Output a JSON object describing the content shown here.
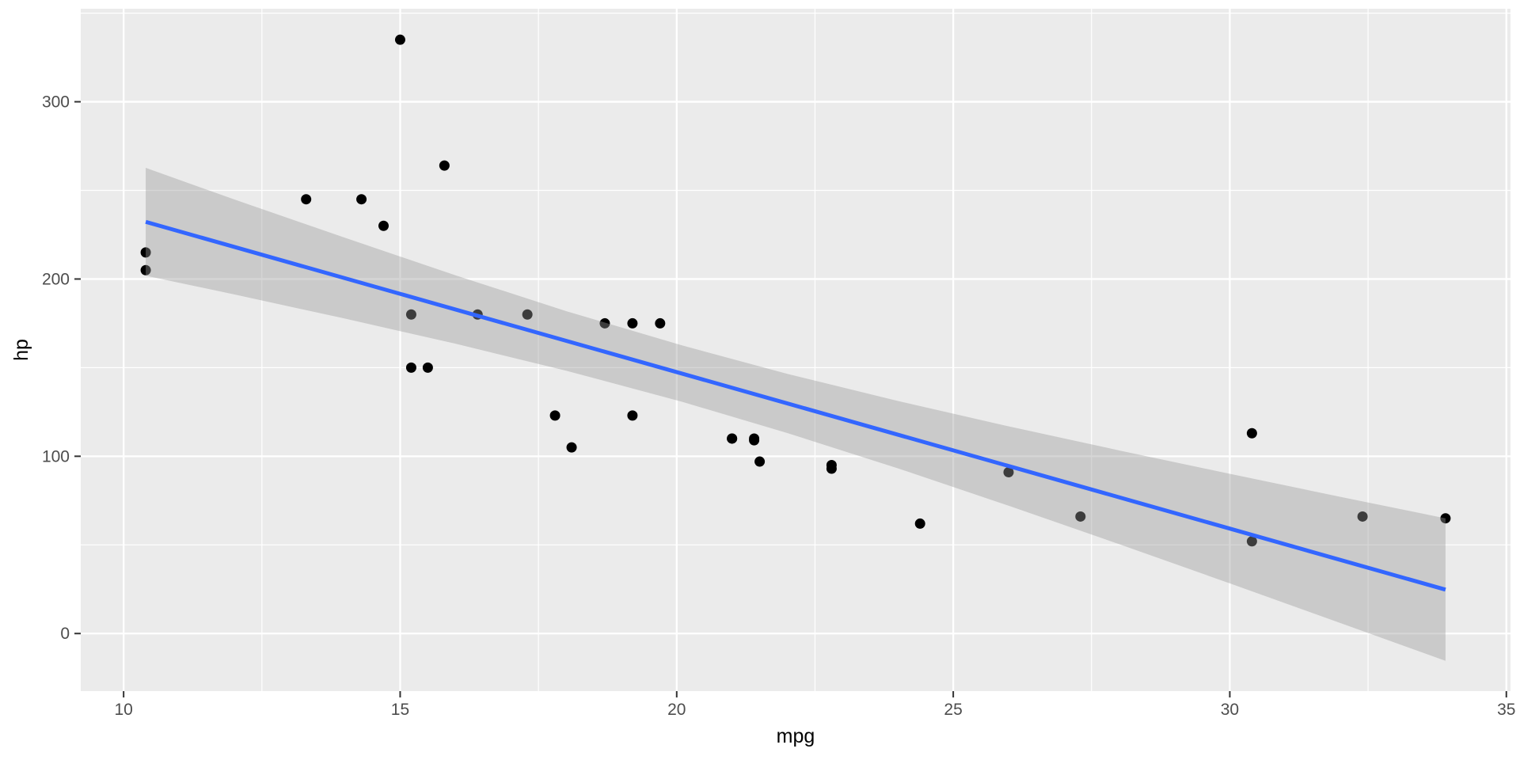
{
  "chart_data": {
    "type": "scatter",
    "title": "",
    "xlabel": "mpg",
    "ylabel": "hp",
    "legend": "none",
    "grid": "on",
    "xlim": [
      9.225,
      35.075
    ],
    "ylim": [
      -32.5,
      352.5
    ],
    "x_ticks": [
      10,
      15,
      20,
      25,
      30,
      35
    ],
    "y_ticks": [
      0,
      100,
      200,
      300
    ],
    "x_minor_ticks": [
      12.5,
      17.5,
      22.5,
      27.5,
      32.5
    ],
    "y_minor_ticks": [
      50,
      150,
      250,
      350
    ],
    "points": [
      [
        21.0,
        110
      ],
      [
        21.0,
        110
      ],
      [
        22.8,
        93
      ],
      [
        21.4,
        110
      ],
      [
        18.7,
        175
      ],
      [
        18.1,
        105
      ],
      [
        14.3,
        245
      ],
      [
        24.4,
        62
      ],
      [
        22.8,
        95
      ],
      [
        19.2,
        123
      ],
      [
        17.8,
        123
      ],
      [
        16.4,
        180
      ],
      [
        17.3,
        180
      ],
      [
        15.2,
        180
      ],
      [
        10.4,
        205
      ],
      [
        10.4,
        215
      ],
      [
        14.7,
        230
      ],
      [
        32.4,
        66
      ],
      [
        30.4,
        52
      ],
      [
        33.9,
        65
      ],
      [
        21.5,
        97
      ],
      [
        15.5,
        150
      ],
      [
        15.2,
        150
      ],
      [
        13.3,
        245
      ],
      [
        19.2,
        175
      ],
      [
        27.3,
        66
      ],
      [
        26.0,
        91
      ],
      [
        30.4,
        113
      ],
      [
        15.8,
        264
      ],
      [
        19.7,
        175
      ],
      [
        15.0,
        335
      ],
      [
        21.4,
        109
      ]
    ],
    "regression_line": {
      "method": "lm",
      "slope": -8.83,
      "intercept": 324.08,
      "x_start": 10.4,
      "x_end": 33.9
    },
    "confidence_band": {
      "x": [
        10.4,
        12.0,
        14.0,
        16.0,
        18.0,
        20.09,
        22.0,
        24.0,
        26.0,
        28.0,
        30.0,
        32.0,
        33.9
      ],
      "lower": [
        201.9,
        191.3,
        177.7,
        163.5,
        148.3,
        130.8,
        113.1,
        93.2,
        72.1,
        50.4,
        28.3,
        5.9,
        -15.4
      ],
      "upper": [
        262.7,
        244.9,
        223.3,
        202.1,
        181.9,
        162.6,
        146.5,
        131.2,
        116.9,
        103.3,
        90.1,
        77.1,
        65.0
      ]
    },
    "style": {
      "panel_bg": "#EBEBEB",
      "grid_color": "#FFFFFF",
      "point_color": "#000000",
      "point_radius": 6.5,
      "line_color": "#3366FF",
      "line_width": 5,
      "band_fill": "#999999",
      "band_opacity": 0.4,
      "tick_mark_color": "#333333",
      "tick_label_color": "#4D4D4D",
      "axis_title_color": "#000000"
    }
  }
}
